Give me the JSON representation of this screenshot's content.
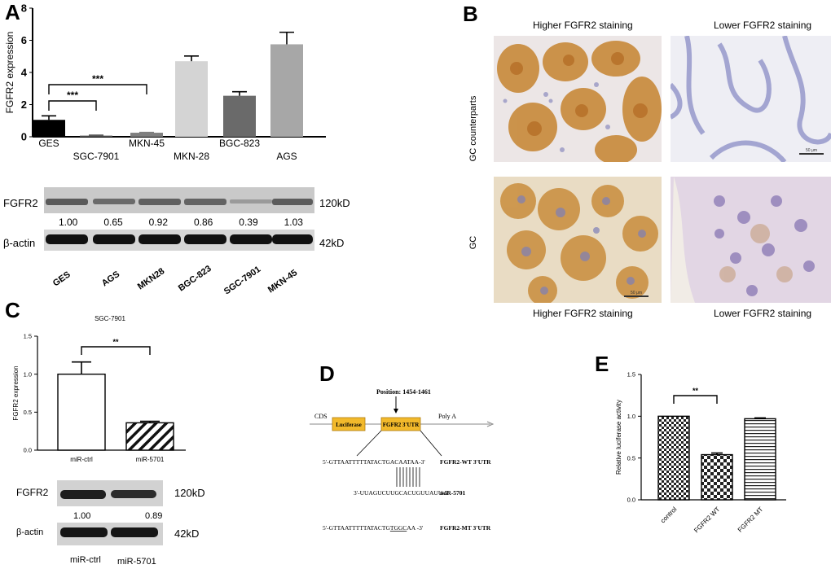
{
  "panels": {
    "a": "A",
    "b": "B",
    "c": "C",
    "d": "D",
    "e": "E"
  },
  "colors": {
    "ges": "#000000",
    "sgc7901": "#555555",
    "mkn45": "#7f7f7f",
    "mkn28": "#d4d4d4",
    "bgc823": "#6a6a6a",
    "ags": "#a7a7a7"
  },
  "chart_data": [
    {
      "id": "A",
      "type": "bar",
      "ylabel": "FGFR2 expression",
      "ylim": [
        0,
        8
      ],
      "yticks": [
        0,
        2,
        4,
        6,
        8
      ],
      "categories": [
        "GES",
        "SGC-7901",
        "MKN-45",
        "MKN-28",
        "BGC-823",
        "AGS"
      ],
      "values": [
        1.05,
        0.07,
        0.25,
        4.7,
        2.55,
        5.75
      ],
      "errors": [
        0.25,
        0.03,
        0.02,
        0.32,
        0.25,
        0.75
      ],
      "significance": [
        {
          "from": "GES",
          "to": "SGC-7901",
          "label": "***"
        },
        {
          "from": "GES",
          "to": "MKN-45",
          "label": "***"
        }
      ]
    },
    {
      "id": "C",
      "type": "bar",
      "title": "SGC-7901",
      "ylabel": "FGFR2 expression",
      "ylim": [
        0,
        1.5
      ],
      "yticks": [
        "0.0",
        "0.5",
        "1.0",
        "1.5"
      ],
      "categories": [
        "miR-ctrl",
        "miR-5701"
      ],
      "values": [
        1.0,
        0.36
      ],
      "errors": [
        0.16,
        0.02
      ],
      "significance": [
        {
          "from": "miR-ctrl",
          "to": "miR-5701",
          "label": "**"
        }
      ]
    },
    {
      "id": "E",
      "type": "bar",
      "ylabel": "Relative luciferase activity",
      "ylim": [
        0,
        1.5
      ],
      "yticks": [
        "0.0",
        "0.5",
        "1.0",
        "1.5"
      ],
      "categories": [
        "control",
        "FGFR2 WT",
        "FGFR2 MT"
      ],
      "values": [
        1.0,
        0.54,
        0.97
      ],
      "errors": [
        0.0,
        0.02,
        0.01
      ],
      "significance": [
        {
          "from": "control",
          "to": "FGFR2 WT",
          "label": "**"
        }
      ]
    }
  ],
  "westernA": {
    "row1": "FGFR2",
    "row2": "β-actin",
    "kd1": "120kD",
    "kd2": "42kD",
    "quant": [
      "1.00",
      "0.65",
      "0.92",
      "0.86",
      "0.39",
      "1.03"
    ],
    "lanes": [
      "GES",
      "AGS",
      "MKN28",
      "BGC-823",
      "SGC-7901",
      "MKN-45"
    ]
  },
  "westernC": {
    "row1": "FGFR2",
    "row2": "β-actin",
    "kd1": "120kD",
    "kd2": "42kD",
    "quant": [
      "1.00",
      "0.89"
    ],
    "lanes": [
      "miR-ctrl",
      "miR-5701"
    ]
  },
  "ihc": {
    "col1": "Higher FGFR2 staining",
    "col2": "Lower FGFR2 staining",
    "row1": "GC counterparts",
    "row2": "GC",
    "bottom1": "Higher FGFR2 staining",
    "bottom2": "Lower FGFR2 staining",
    "scale": "50 μm"
  },
  "diagramD": {
    "position": "Position: 1454-1461",
    "cds": "CDS",
    "luciferase": "Luciferase",
    "utr": "FGFR2 3'UTR",
    "polya": "Poly A",
    "wt_prefix": "5'-GTTAATTTTTATACTGACAATAA-3'",
    "wt_label": "FGFR2-WT 3'UTR",
    "mir_seq": "3'-UUAGUCUUGCACUGUUAUU-5'",
    "mir_label": "miR-5701",
    "mt_pre": "5'-GTTAATTTTTATACTG",
    "mt_mut": "TGGC",
    "mt_post": "AA -3'",
    "mt_label": "FGFR2-MT 3'UTR"
  }
}
